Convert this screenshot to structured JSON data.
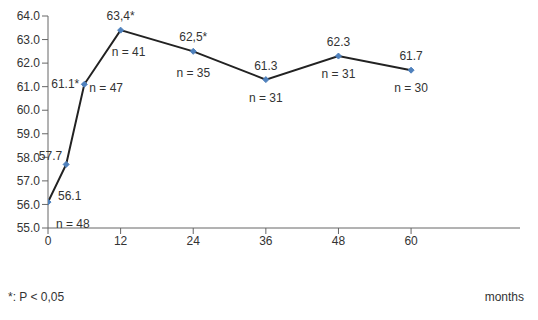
{
  "chart_data": {
    "type": "line",
    "x_label": "months",
    "note": "*: P < 0,05",
    "x": [
      0,
      3,
      6,
      12,
      24,
      36,
      48,
      60
    ],
    "values": [
      56.1,
      57.7,
      61.1,
      63.4,
      62.5,
      61.3,
      62.3,
      61.7
    ],
    "value_labels": [
      "56.1",
      "57.7",
      "61.1*",
      "63,4*",
      "62,5*",
      "61.3",
      "62.3",
      "61.7"
    ],
    "n_labels": [
      "n = 48",
      null,
      "n = 47",
      "n = 41",
      "n = 35",
      "n = 31",
      "n = 31",
      "n = 30"
    ],
    "color": "#222222",
    "marker": "diamond",
    "marker_color": "#4f81bd",
    "xlim": [
      0,
      78
    ],
    "xticks": [
      0,
      12,
      24,
      36,
      48,
      60
    ],
    "ylim": [
      55,
      64
    ],
    "yticks": [
      {
        "value": 55,
        "label": "55.0"
      },
      {
        "value": 56,
        "label": "56.0"
      },
      {
        "value": 57,
        "label": "57.0"
      },
      {
        "value": 58,
        "label": "58.0"
      },
      {
        "value": 59,
        "label": "59.0"
      },
      {
        "value": 60,
        "label": "60.0"
      },
      {
        "value": 61,
        "label": "61.0"
      },
      {
        "value": 62,
        "label": "62.0"
      },
      {
        "value": 63,
        "label": "63.0"
      },
      {
        "value": 64,
        "label": "64.0"
      }
    ],
    "grid": false,
    "data_labels": true
  }
}
